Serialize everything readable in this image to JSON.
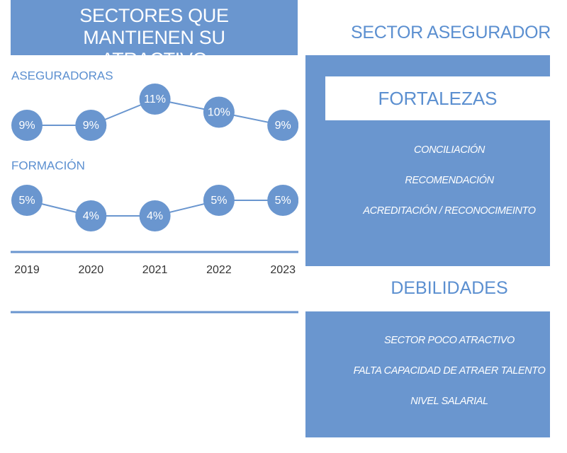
{
  "header": {
    "title": "SECTORES QUE MANTIENEN SU ATRACTIVO"
  },
  "chart_data": [
    {
      "type": "line",
      "title": "ASEGURADORAS",
      "values": [
        9,
        9,
        11,
        10,
        9
      ],
      "value_labels": [
        "9%",
        "9%",
        "11%",
        "10%",
        "9%"
      ],
      "color": "#6a96cf"
    },
    {
      "type": "line",
      "title": "FORMACIÓN",
      "categories": [
        "2019",
        "2020",
        "2021",
        "2022",
        "2023"
      ],
      "values": [
        5,
        4,
        4,
        5,
        5
      ],
      "value_labels": [
        "5%",
        "4%",
        "4%",
        "5%",
        "5%"
      ],
      "color": "#6a96cf"
    }
  ],
  "sector": {
    "title": "SECTOR ASEGURADOR",
    "strengths": {
      "title": "FORTALEZAS",
      "items": [
        "CONCILIACIÓN",
        "RECOMENDACIÓN",
        "ACREDITACIÓN / RECONOCIMEINTO"
      ]
    },
    "weaknesses": {
      "title": "DEBILIDADES",
      "items": [
        "SECTOR  POCO ATRACTIVO",
        "FALTA CAPACIDAD DE ATRAER TALENTO",
        "NIVEL SALARIAL"
      ]
    }
  }
}
